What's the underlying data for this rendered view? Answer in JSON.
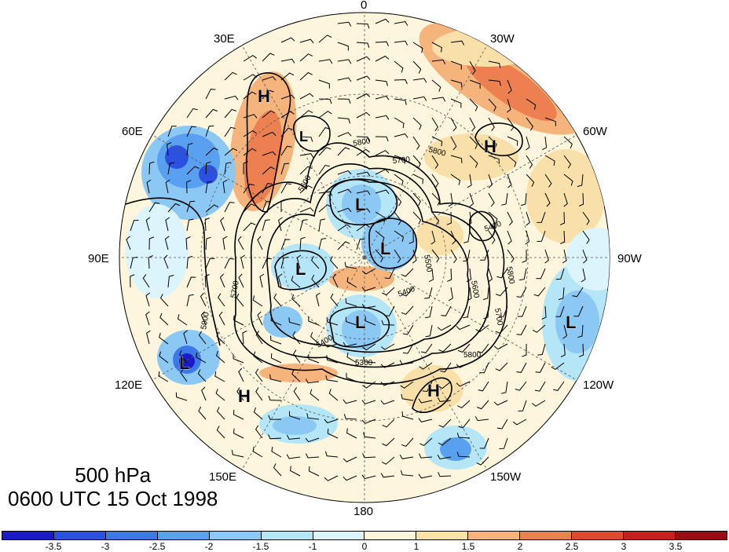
{
  "title": {
    "level": "500 hPa",
    "time": "0600 UTC 15 Oct 1998"
  },
  "longitude_labels": [
    "0",
    "30W",
    "60W",
    "90W",
    "120W",
    "150W",
    "180",
    "150E",
    "120E",
    "90E",
    "60E",
    "30E"
  ],
  "contour_labels": [
    "5800",
    "5800",
    "5700",
    "5600",
    "5300",
    "5400",
    "5400",
    "5500",
    "5600",
    "5700",
    "5800",
    "5800",
    "5700",
    "5900",
    "5400"
  ],
  "pressure_centers": [
    "H",
    "L",
    "H",
    "L",
    "L",
    "L",
    "L",
    "L",
    "H",
    "H",
    "L"
  ],
  "colorbar": {
    "ticks": [
      "-3.5",
      "-3",
      "-2.5",
      "-2",
      "-1.5",
      "-1",
      "0",
      "1",
      "1.5",
      "2",
      "2.5",
      "3",
      "3.5"
    ],
    "colors": [
      "#1a1ac8",
      "#2c50e0",
      "#3c78ea",
      "#5aa0f0",
      "#8cc8f4",
      "#b4e6f8",
      "#dcf4fc",
      "#fcf6d8",
      "#f8e0a8",
      "#f4b47c",
      "#ec8050",
      "#e04830",
      "#c81e1e",
      "#a00a14"
    ]
  }
}
